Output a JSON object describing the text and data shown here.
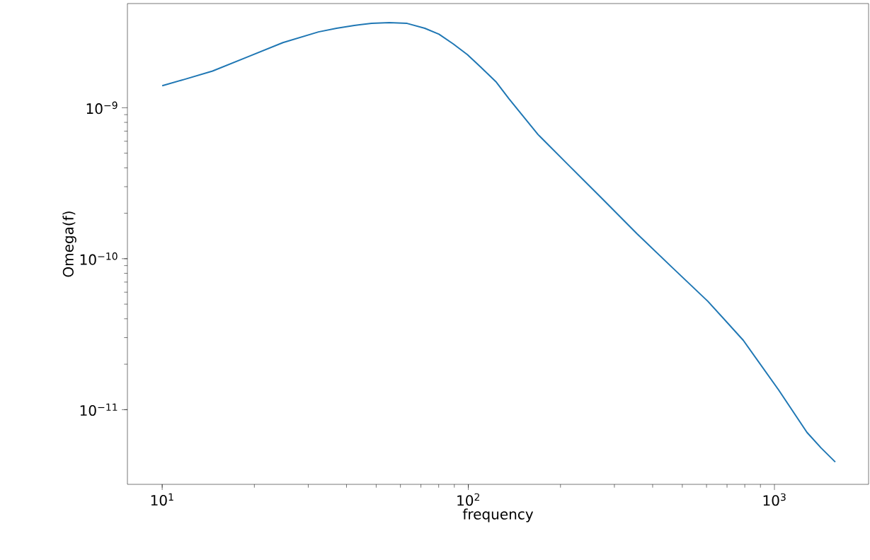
{
  "chart_data": {
    "type": "line",
    "xlabel": "frequency",
    "ylabel": "Omega(f)",
    "log": "xy",
    "marker": "none",
    "line_style": "solid",
    "xlim": [
      7.7,
      2030
    ],
    "ylim": [
      3.2e-12,
      4.9e-09
    ],
    "xticks": [
      {
        "value": 10,
        "label": "10$^{1}$"
      },
      {
        "value": 100,
        "label": "10$^{2}$"
      },
      {
        "value": 1000,
        "label": "10$^{3}$"
      }
    ],
    "yticks": [
      {
        "value": 1e-11,
        "label": "10$^{−11}$"
      },
      {
        "value": 1e-10,
        "label": "10$^{−10}$"
      },
      {
        "value": 1e-09,
        "label": "10$^{−9}$"
      }
    ],
    "series": [
      {
        "color": "#1f77b4",
        "x": [
          10,
          11.8,
          14.6,
          19.1,
          24.8,
          32.4,
          37.1,
          42.4,
          48.3,
          55.2,
          63.1,
          72.1,
          80.2,
          89.2,
          99.3,
          110,
          123,
          136,
          169,
          209,
          273,
          356,
          465,
          606,
          791,
          1032,
          1277,
          1421,
          1580
        ],
        "values": [
          1.4e-09,
          1.54e-09,
          1.75e-09,
          2.18e-09,
          2.7e-09,
          3.18e-09,
          3.36e-09,
          3.51e-09,
          3.62e-09,
          3.66e-09,
          3.62e-09,
          3.36e-09,
          3.07e-09,
          2.65e-09,
          2.25e-09,
          1.85e-09,
          1.49e-09,
          1.14e-09,
          6.64e-10,
          4.31e-10,
          2.51e-10,
          1.46e-10,
          8.69e-11,
          5.22e-11,
          2.88e-11,
          1.35e-11,
          7.07e-12,
          5.57e-12,
          4.5e-12
        ]
      }
    ]
  }
}
